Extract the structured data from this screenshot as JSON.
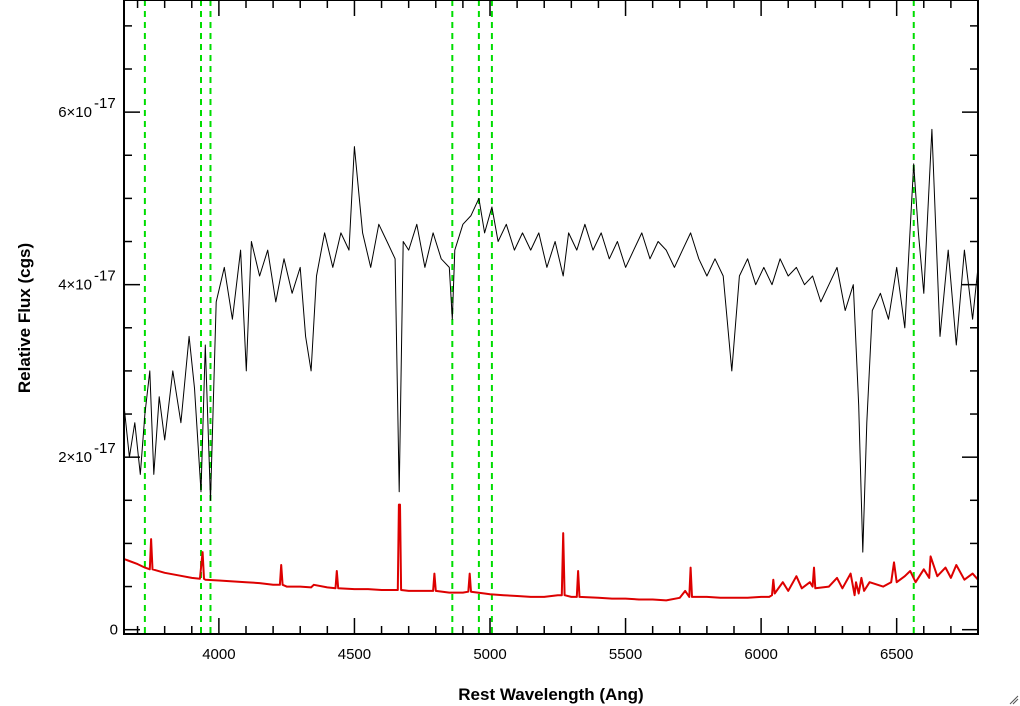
{
  "chart_data": {
    "type": "line",
    "title": "",
    "xlabel": "Rest Wavelength (Ang)",
    "ylabel": "Relative Flux (cgs)",
    "xlim": [
      3650,
      6800
    ],
    "ylim": [
      -5e-19,
      7.3e-17
    ],
    "x_ticks": [
      {
        "value": 4000,
        "label": "4000"
      },
      {
        "value": 4500,
        "label": "4500"
      },
      {
        "value": 5000,
        "label": "5000"
      },
      {
        "value": 5500,
        "label": "5500"
      },
      {
        "value": 6000,
        "label": "6000"
      },
      {
        "value": 6500,
        "label": "6500"
      }
    ],
    "y_ticks": [
      {
        "value": 0,
        "mantissa": "0",
        "exponent": ""
      },
      {
        "value": 2e-17,
        "mantissa": "2×10",
        "exponent": "-17"
      },
      {
        "value": 4e-17,
        "mantissa": "4×10",
        "exponent": "-17"
      },
      {
        "value": 6e-17,
        "mantissa": "6×10",
        "exponent": "-17"
      }
    ],
    "x_minor_step": 100,
    "y_minor_step": 5e-18,
    "grid": false,
    "reference_lines": [
      3727,
      3934,
      3969,
      4861,
      4959,
      5007,
      6563
    ],
    "reference_line_color": "#00dd00",
    "series": [
      {
        "color": "#000000",
        "x": [
          3650,
          3670,
          3690,
          3710,
          3727,
          3745,
          3760,
          3780,
          3800,
          3830,
          3860,
          3890,
          3910,
          3934,
          3950,
          3969,
          3990,
          4020,
          4050,
          4080,
          4101,
          4120,
          4150,
          4180,
          4210,
          4240,
          4270,
          4300,
          4320,
          4340,
          4360,
          4390,
          4420,
          4450,
          4480,
          4500,
          4530,
          4560,
          4590,
          4620,
          4650,
          4665,
          4680,
          4700,
          4730,
          4760,
          4790,
          4820,
          4850,
          4861,
          4870,
          4900,
          4930,
          4959,
          4980,
          5007,
          5030,
          5060,
          5090,
          5120,
          5150,
          5180,
          5210,
          5240,
          5270,
          5290,
          5320,
          5350,
          5380,
          5410,
          5440,
          5470,
          5500,
          5530,
          5560,
          5590,
          5620,
          5650,
          5680,
          5710,
          5740,
          5770,
          5800,
          5830,
          5860,
          5892,
          5920,
          5950,
          5980,
          6010,
          6040,
          6070,
          6100,
          6130,
          6160,
          6190,
          6220,
          6250,
          6280,
          6310,
          6340,
          6360,
          6375,
          6390,
          6410,
          6440,
          6470,
          6500,
          6530,
          6563,
          6580,
          6600,
          6630,
          6660,
          6690,
          6720,
          6750,
          6780,
          6800
        ],
        "y": [
          2.6e-17,
          2e-17,
          2.4e-17,
          1.8e-17,
          2.5e-17,
          3e-17,
          1.8e-17,
          2.7e-17,
          2.2e-17,
          3e-17,
          2.4e-17,
          3.4e-17,
          2.8e-17,
          1.6e-17,
          3.3e-17,
          1.5e-17,
          3.8e-17,
          4.2e-17,
          3.6e-17,
          4.4e-17,
          3e-17,
          4.5e-17,
          4.1e-17,
          4.4e-17,
          3.8e-17,
          4.3e-17,
          3.9e-17,
          4.2e-17,
          3.4e-17,
          3e-17,
          4.1e-17,
          4.6e-17,
          4.2e-17,
          4.6e-17,
          4.4e-17,
          5.6e-17,
          4.6e-17,
          4.2e-17,
          4.7e-17,
          4.5e-17,
          4.3e-17,
          1.6e-17,
          4.5e-17,
          4.4e-17,
          4.7e-17,
          4.2e-17,
          4.6e-17,
          4.3e-17,
          4.2e-17,
          3.6e-17,
          4.4e-17,
          4.7e-17,
          4.8e-17,
          5e-17,
          4.6e-17,
          4.9e-17,
          4.5e-17,
          4.7e-17,
          4.4e-17,
          4.6e-17,
          4.4e-17,
          4.6e-17,
          4.2e-17,
          4.5e-17,
          4.1e-17,
          4.6e-17,
          4.4e-17,
          4.7e-17,
          4.4e-17,
          4.6e-17,
          4.3e-17,
          4.5e-17,
          4.2e-17,
          4.4e-17,
          4.6e-17,
          4.3e-17,
          4.5e-17,
          4.4e-17,
          4.2e-17,
          4.4e-17,
          4.6e-17,
          4.3e-17,
          4.1e-17,
          4.3e-17,
          4.1e-17,
          3e-17,
          4.1e-17,
          4.3e-17,
          4e-17,
          4.2e-17,
          4e-17,
          4.3e-17,
          4.1e-17,
          4.2e-17,
          4e-17,
          4.1e-17,
          3.8e-17,
          4e-17,
          4.2e-17,
          3.7e-17,
          4e-17,
          2.6e-17,
          9e-18,
          2.4e-17,
          3.7e-17,
          3.9e-17,
          3.6e-17,
          4.2e-17,
          3.5e-17,
          5.4e-17,
          4.6e-17,
          3.9e-17,
          5.8e-17,
          3.4e-17,
          4.4e-17,
          3.3e-17,
          4.4e-17,
          3.6e-17,
          4.2e-17
        ]
      },
      {
        "color": "#dd0000",
        "x": [
          3650,
          3700,
          3727,
          3745,
          3750,
          3755,
          3800,
          3850,
          3900,
          3930,
          3940,
          3945,
          3950,
          4000,
          4050,
          4100,
          4150,
          4200,
          4225,
          4230,
          4235,
          4250,
          4300,
          4340,
          4350,
          4400,
          4430,
          4435,
          4440,
          4500,
          4550,
          4600,
          4650,
          4660,
          4664,
          4668,
          4672,
          4700,
          4750,
          4790,
          4795,
          4800,
          4850,
          4900,
          4920,
          4925,
          4930,
          4980,
          5000,
          5050,
          5100,
          5150,
          5200,
          5250,
          5265,
          5270,
          5275,
          5300,
          5320,
          5325,
          5330,
          5400,
          5450,
          5500,
          5550,
          5600,
          5650,
          5700,
          5720,
          5735,
          5740,
          5745,
          5800,
          5850,
          5900,
          5950,
          6000,
          6030,
          6040,
          6045,
          6050,
          6080,
          6100,
          6130,
          6150,
          6180,
          6190,
          6195,
          6200,
          6250,
          6280,
          6300,
          6330,
          6345,
          6350,
          6360,
          6370,
          6380,
          6400,
          6450,
          6480,
          6490,
          6500,
          6530,
          6550,
          6570,
          6600,
          6620,
          6625,
          6650,
          6680,
          6700,
          6720,
          6750,
          6780,
          6800
        ],
        "y": [
          8.2e-18,
          7.6e-18,
          7.2e-18,
          7e-18,
          1.05e-17,
          7e-18,
          6.6e-18,
          6.3e-18,
          6e-18,
          5.9e-18,
          9e-18,
          5.9e-18,
          5.8e-18,
          5.7e-18,
          5.6e-18,
          5.5e-18,
          5.4e-18,
          5.2e-18,
          5.2e-18,
          7.5e-18,
          5.2e-18,
          5e-18,
          5e-18,
          4.9e-18,
          5.2e-18,
          4.9e-18,
          4.8e-18,
          6.8e-18,
          4.8e-18,
          4.7e-18,
          4.7e-18,
          4.6e-18,
          4.6e-18,
          4.6e-18,
          1.45e-17,
          1.45e-17,
          4.6e-18,
          4.5e-18,
          4.5e-18,
          4.5e-18,
          6.5e-18,
          4.5e-18,
          4.3e-18,
          4.3e-18,
          4.4e-18,
          6.5e-18,
          4.4e-18,
          4.2e-18,
          4.1e-18,
          4e-18,
          3.9e-18,
          3.8e-18,
          3.8e-18,
          4e-18,
          4e-18,
          1.12e-17,
          4e-18,
          3.8e-18,
          3.8e-18,
          6.8e-18,
          3.8e-18,
          3.7e-18,
          3.6e-18,
          3.6e-18,
          3.5e-18,
          3.5e-18,
          3.4e-18,
          3.7e-18,
          4.5e-18,
          3.8e-18,
          7.2e-18,
          3.8e-18,
          3.8e-18,
          3.7e-18,
          3.7e-18,
          3.7e-18,
          3.8e-18,
          3.8e-18,
          4e-18,
          5.8e-18,
          4.2e-18,
          5.5e-18,
          4.5e-18,
          6.2e-18,
          4.8e-18,
          5.5e-18,
          5e-18,
          7.2e-18,
          4.8e-18,
          5e-18,
          6e-18,
          4.8e-18,
          6.5e-18,
          4e-18,
          5.5e-18,
          4.2e-18,
          6e-18,
          4.5e-18,
          5.5e-18,
          5e-18,
          5.5e-18,
          7.8e-18,
          5.5e-18,
          6.2e-18,
          6.8e-18,
          5.5e-18,
          7e-18,
          6e-18,
          8.5e-18,
          6.2e-18,
          7.2e-18,
          6e-18,
          7.5e-18,
          5.8e-18,
          6.5e-18,
          5.8e-18
        ]
      }
    ]
  }
}
